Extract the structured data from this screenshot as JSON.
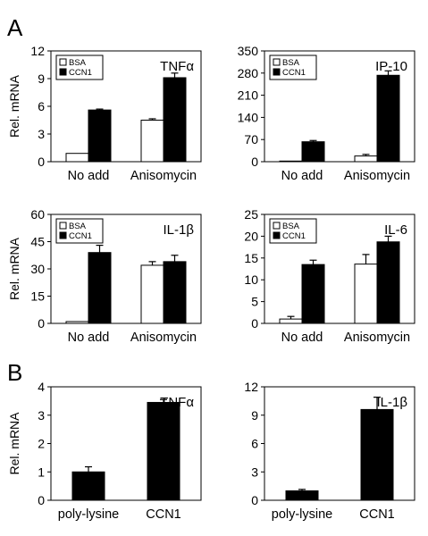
{
  "figure": {
    "panel_labels": [
      "A",
      "B"
    ]
  },
  "chart_data": [
    {
      "id": "tnfa-A",
      "type": "bar",
      "title": "TNFα",
      "ylabel": "Rel. mRNA",
      "xlabel": "",
      "categories": [
        "No add",
        "Anisomycin"
      ],
      "ylim": [
        0,
        12
      ],
      "yticks": [
        "0",
        "3",
        "6",
        "9",
        "12"
      ],
      "legend": {
        "placement": "top-left",
        "entries": [
          "BSA",
          "CCN1"
        ]
      },
      "series": [
        {
          "name": "BSA",
          "color": "#ffffff",
          "values": [
            0.9,
            4.5
          ],
          "errors": [
            0,
            0.15
          ]
        },
        {
          "name": "CCN1",
          "color": "#000000",
          "values": [
            5.6,
            9.1
          ],
          "errors": [
            0.1,
            0.5
          ]
        }
      ]
    },
    {
      "id": "ip10-A",
      "type": "bar",
      "title": "IP-10",
      "ylabel": "",
      "xlabel": "",
      "categories": [
        "No add",
        "Anisomycin"
      ],
      "ylim": [
        0,
        350
      ],
      "yticks": [
        "0",
        "70",
        "140",
        "210",
        "280",
        "350"
      ],
      "legend": {
        "placement": "top-left",
        "entries": [
          "BSA",
          "CCN1"
        ]
      },
      "series": [
        {
          "name": "BSA",
          "color": "#ffffff",
          "values": [
            2,
            18
          ],
          "errors": [
            0,
            5
          ]
        },
        {
          "name": "CCN1",
          "color": "#000000",
          "values": [
            63,
            273
          ],
          "errors": [
            4,
            14
          ]
        }
      ]
    },
    {
      "id": "il1b-A",
      "type": "bar",
      "title": "IL-1β",
      "ylabel": "Rel. mRNA",
      "xlabel": "",
      "categories": [
        "No add",
        "Anisomycin"
      ],
      "ylim": [
        0,
        60
      ],
      "yticks": [
        "0",
        "15",
        "30",
        "45",
        "60"
      ],
      "legend": {
        "placement": "top-left",
        "entries": [
          "BSA",
          "CCN1"
        ]
      },
      "series": [
        {
          "name": "BSA",
          "color": "#ffffff",
          "values": [
            1,
            32
          ],
          "errors": [
            0,
            2
          ]
        },
        {
          "name": "CCN1",
          "color": "#000000",
          "values": [
            39,
            34
          ],
          "errors": [
            4,
            3.5
          ]
        }
      ]
    },
    {
      "id": "il6-A",
      "type": "bar",
      "title": "IL-6",
      "ylabel": "",
      "xlabel": "",
      "categories": [
        "No add",
        "Anisomycin"
      ],
      "ylim": [
        0,
        25
      ],
      "yticks": [
        "0",
        "5",
        "10",
        "15",
        "20",
        "25"
      ],
      "legend": {
        "placement": "top-left",
        "entries": [
          "BSA",
          "CCN1"
        ]
      },
      "series": [
        {
          "name": "BSA",
          "color": "#ffffff",
          "values": [
            1,
            13.6
          ],
          "errors": [
            0.6,
            2.2
          ]
        },
        {
          "name": "CCN1",
          "color": "#000000",
          "values": [
            13.5,
            18.7
          ],
          "errors": [
            1,
            1.3
          ]
        }
      ]
    },
    {
      "id": "tnfa-B",
      "type": "bar",
      "title": "TNFα",
      "ylabel": "Rel. mRNA",
      "xlabel": "",
      "categories": [
        "poly-lysine",
        "CCN1"
      ],
      "ylim": [
        0,
        4
      ],
      "yticks": [
        "0",
        "1",
        "2",
        "3",
        "4"
      ],
      "legend": null,
      "series": [
        {
          "name": "",
          "color": "#000000",
          "values": [
            1.0,
            3.45
          ],
          "errors": [
            0.18,
            0.1
          ]
        }
      ]
    },
    {
      "id": "il1b-B",
      "type": "bar",
      "title": "IL-1β",
      "ylabel": "",
      "xlabel": "",
      "categories": [
        "poly-lysine",
        "CCN1"
      ],
      "ylim": [
        0,
        12
      ],
      "yticks": [
        "0",
        "3",
        "6",
        "9",
        "12"
      ],
      "legend": null,
      "series": [
        {
          "name": "",
          "color": "#000000",
          "values": [
            1.0,
            9.6
          ],
          "errors": [
            0.15,
            1.3
          ]
        }
      ]
    }
  ]
}
